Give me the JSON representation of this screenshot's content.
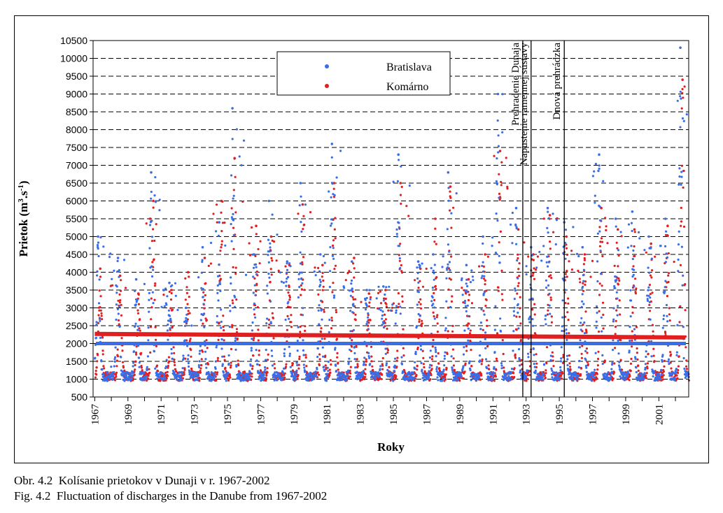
{
  "caption": {
    "line1": "Obr. 4.2  Kolísanie prietokov v Dunaji v r. 1967-2002",
    "line2": "Fig. 4.2  Fluctuation of discharges in the Danube from 1967-2002"
  },
  "chart_data": {
    "type": "scatter",
    "xlabel": "Roky",
    "ylabel_main": "Prietok (m",
    "ylabel_sup1": "3",
    "ylabel_mid": ".s",
    "ylabel_sup2": "-1",
    "ylabel_end": ")",
    "ylim": [
      500,
      10500
    ],
    "xlim": [
      1966.9,
      2002.8
    ],
    "y_ticks": [
      500,
      1000,
      1500,
      2000,
      2500,
      3000,
      3500,
      4000,
      4500,
      5000,
      5500,
      6000,
      6500,
      7000,
      7500,
      8000,
      8500,
      9000,
      9500,
      10000,
      10500
    ],
    "y_tick_labels": [
      "500",
      "1000",
      "1500",
      "2000",
      "2500",
      "3000",
      "3500",
      "4000",
      "4500",
      "5000",
      "5500",
      "6000",
      "6500",
      "7000",
      "7500",
      "8000",
      "8500",
      "9000",
      "9500",
      "10000",
      "10500"
    ],
    "dashed_gridlines": [
      1000,
      1500,
      2000,
      2500,
      3000,
      3500,
      4000,
      4500,
      5000,
      5500,
      6000,
      6500,
      7000,
      7500,
      8000,
      8500,
      9000,
      9500,
      10000
    ],
    "x_tick_labels": [
      "1967",
      "1969",
      "1971",
      "1973",
      "1975",
      "1977",
      "1979",
      "1981",
      "1983",
      "1985",
      "1987",
      "1989",
      "1991",
      "1993",
      "1995",
      "1997",
      "1999",
      "2001"
    ],
    "legend": {
      "placement": "top-center"
    },
    "series": [
      {
        "name": "Bratislava",
        "color": "#3a6ee8",
        "mean": 2000,
        "yearly_peaks": [
          [
            1967.2,
            5000
          ],
          [
            1968.4,
            4400
          ],
          [
            1969.5,
            3800
          ],
          [
            1970.4,
            6800
          ],
          [
            1971.5,
            3700
          ],
          [
            1972.5,
            3000
          ],
          [
            1973.5,
            4700
          ],
          [
            1974.5,
            5400
          ],
          [
            1975.3,
            8600
          ],
          [
            1976.6,
            4500
          ],
          [
            1977.5,
            6000
          ],
          [
            1978.6,
            4300
          ],
          [
            1979.4,
            6500
          ],
          [
            1980.6,
            4500
          ],
          [
            1981.3,
            7600
          ],
          [
            1982.5,
            4300
          ],
          [
            1983.4,
            3500
          ],
          [
            1984.4,
            3600
          ],
          [
            1985.3,
            7300
          ],
          [
            1986.5,
            4300
          ],
          [
            1987.4,
            4500
          ],
          [
            1988.3,
            6800
          ],
          [
            1989.4,
            4200
          ],
          [
            1990.4,
            5000
          ],
          [
            1991.3,
            9000
          ],
          [
            1992.4,
            5800
          ],
          [
            1993.3,
            4700
          ],
          [
            1994.3,
            5800
          ],
          [
            1995.3,
            5400
          ],
          [
            1996.4,
            4700
          ],
          [
            1997.4,
            7300
          ],
          [
            1998.4,
            5500
          ],
          [
            1999.4,
            5700
          ],
          [
            2000.4,
            5000
          ],
          [
            2001.4,
            5500
          ],
          [
            2002.3,
            10300
          ]
        ]
      },
      {
        "name": "Komárno",
        "color": "#e02020",
        "mean": 2250,
        "trend": [
          [
            1967.0,
            2270
          ],
          [
            2002.6,
            2170
          ]
        ],
        "yearly_peaks": [
          [
            1967.3,
            4100
          ],
          [
            1968.5,
            3900
          ],
          [
            1969.6,
            3400
          ],
          [
            1970.5,
            6000
          ],
          [
            1971.6,
            3500
          ],
          [
            1972.6,
            4000
          ],
          [
            1973.6,
            4400
          ],
          [
            1974.6,
            6000
          ],
          [
            1975.4,
            7200
          ],
          [
            1976.7,
            5300
          ],
          [
            1977.6,
            5000
          ],
          [
            1978.7,
            4200
          ],
          [
            1979.5,
            5900
          ],
          [
            1980.7,
            4200
          ],
          [
            1981.4,
            6500
          ],
          [
            1982.6,
            4400
          ],
          [
            1983.5,
            3400
          ],
          [
            1984.5,
            3500
          ],
          [
            1985.4,
            6500
          ],
          [
            1986.6,
            4100
          ],
          [
            1987.5,
            5500
          ],
          [
            1988.4,
            6400
          ],
          [
            1989.5,
            3800
          ],
          [
            1990.5,
            4500
          ],
          [
            1991.4,
            7400
          ],
          [
            1992.5,
            5200
          ],
          [
            1993.4,
            4500
          ],
          [
            1994.4,
            5600
          ],
          [
            1995.4,
            5000
          ],
          [
            1996.5,
            4500
          ],
          [
            1997.5,
            5800
          ],
          [
            1998.5,
            5200
          ],
          [
            1999.5,
            5200
          ],
          [
            2000.5,
            4800
          ],
          [
            2001.5,
            5300
          ],
          [
            2002.4,
            9400
          ]
        ]
      }
    ],
    "events": [
      {
        "x": 1992.8,
        "label": "Prehradenie Dunaja"
      },
      {
        "x": 1993.3,
        "label": "Napustenie ramennej sústavy"
      },
      {
        "x": 1995.3,
        "label": "Dnová prehrádzka"
      }
    ]
  }
}
